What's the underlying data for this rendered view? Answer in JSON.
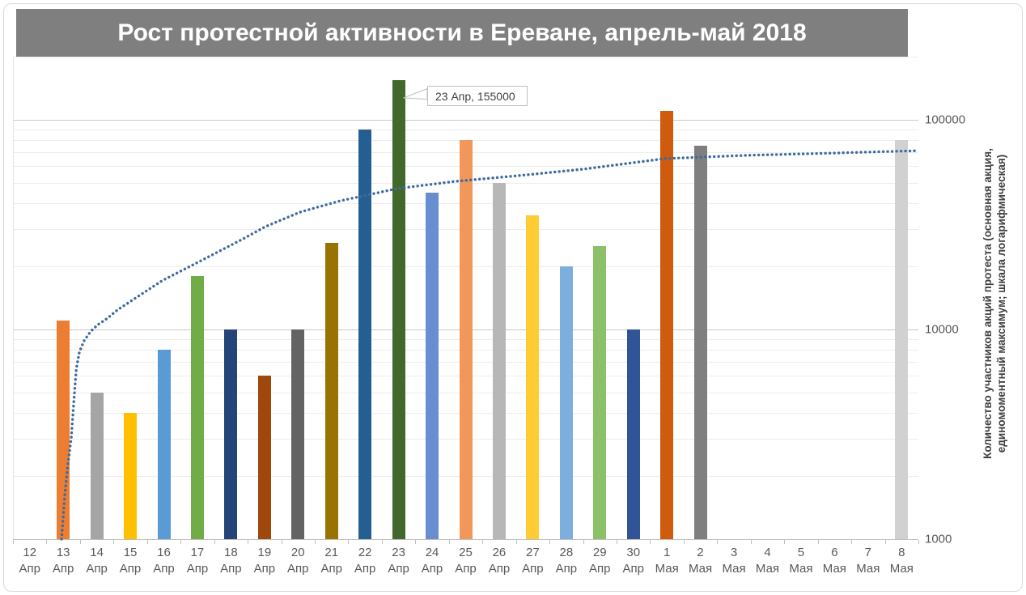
{
  "title": "Рост протестной активности в Ереване, апрель-май 2018",
  "colors": {
    "title_bg": "#7F7F7F",
    "title_text": "#FFFFFF",
    "major_grid": "#C9C9C9",
    "minor_grid": "#EDEDED",
    "axis_line": "#BFBFBF",
    "tick_label": "#595959",
    "axis_title_text": "#404040",
    "trend_line": "#3E6C9E",
    "annotation_border": "#BFBFBF"
  },
  "y_axis": {
    "scale": "logarithmic",
    "tick_labels": [
      "100000",
      "10000",
      "1000"
    ],
    "title_line1": "Количество участников акций протеста (основная акция,",
    "title_line2": "единомоментный максимум; шкала логарифмическая)"
  },
  "annotation": {
    "text": "23 Апр, 155000",
    "category": "23 Апр",
    "value": 155000
  },
  "chart_data": {
    "type": "bar",
    "title": "Рост протестной активности в Ереване, апрель-май 2018",
    "xlabel": "",
    "ylabel": "Количество участников акций протеста (основная акция, единомоментный максимум; шкала логарифмическая)",
    "ylog": true,
    "ylim": [
      1000,
      200000
    ],
    "yticks": [
      100000,
      10000,
      1000
    ],
    "grid": "log major+minor",
    "legend": "none",
    "categories": [
      {
        "day": "12",
        "month": "Апр"
      },
      {
        "day": "13",
        "month": "Апр"
      },
      {
        "day": "14",
        "month": "Апр"
      },
      {
        "day": "15",
        "month": "Апр"
      },
      {
        "day": "16",
        "month": "Апр"
      },
      {
        "day": "17",
        "month": "Апр"
      },
      {
        "day": "18",
        "month": "Апр"
      },
      {
        "day": "19",
        "month": "Апр"
      },
      {
        "day": "20",
        "month": "Апр"
      },
      {
        "day": "21",
        "month": "Апр"
      },
      {
        "day": "22",
        "month": "Апр"
      },
      {
        "day": "23",
        "month": "Апр"
      },
      {
        "day": "24",
        "month": "Апр"
      },
      {
        "day": "25",
        "month": "Апр"
      },
      {
        "day": "26",
        "month": "Апр"
      },
      {
        "day": "27",
        "month": "Апр"
      },
      {
        "day": "28",
        "month": "Апр"
      },
      {
        "day": "29",
        "month": "Апр"
      },
      {
        "day": "30",
        "month": "Апр"
      },
      {
        "day": "1",
        "month": "Мая"
      },
      {
        "day": "2",
        "month": "Мая"
      },
      {
        "day": "3",
        "month": "Мая"
      },
      {
        "day": "4",
        "month": "Мая"
      },
      {
        "day": "5",
        "month": "Мая"
      },
      {
        "day": "6",
        "month": "Мая"
      },
      {
        "day": "7",
        "month": "Мая"
      },
      {
        "day": "8",
        "month": "Мая"
      }
    ],
    "values": [
      null,
      11000,
      5000,
      4000,
      8000,
      18000,
      10000,
      6000,
      10000,
      26000,
      90000,
      155000,
      45000,
      80000,
      50000,
      35000,
      20000,
      25000,
      10000,
      110000,
      75000,
      null,
      null,
      null,
      null,
      null,
      80000
    ],
    "bar_colors": [
      null,
      "#ED7D31",
      "#A5A5A5",
      "#FFC000",
      "#5B9BD5",
      "#70AD47",
      "#264478",
      "#9E480E",
      "#636363",
      "#997300",
      "#255E91",
      "#43682B",
      "#698ED0",
      "#F1975A",
      "#B7B7B7",
      "#FFCD33",
      "#7CAFDD",
      "#8CC168",
      "#2F5597",
      "#CE5B0E",
      "#7F7F7F",
      null,
      null,
      null,
      null,
      null,
      "#D1D1D1"
    ],
    "data_label": {
      "category_index": 11,
      "text": "23 Апр, 155000"
    },
    "trend": {
      "kind": "logarithmic trendline, dotted",
      "points": [
        [
          0.95,
          1000
        ],
        [
          1.05,
          1650
        ],
        [
          1.15,
          2350
        ],
        [
          1.24,
          3050
        ],
        [
          1.31,
          4400
        ],
        [
          1.39,
          6500
        ],
        [
          1.48,
          7800
        ],
        [
          1.63,
          8900
        ],
        [
          1.82,
          9800
        ],
        [
          2.02,
          10500
        ],
        [
          2.31,
          11300
        ],
        [
          2.62,
          12400
        ],
        [
          3.06,
          13800
        ],
        [
          3.95,
          17100
        ],
        [
          5.16,
          21500
        ],
        [
          6.37,
          27100
        ],
        [
          7.02,
          30900
        ],
        [
          8.06,
          36300
        ],
        [
          9.27,
          41100
        ],
        [
          10.96,
          47000
        ],
        [
          12.66,
          50800
        ],
        [
          14.59,
          54200
        ],
        [
          16.52,
          58200
        ],
        [
          18.94,
          65300
        ],
        [
          21.36,
          67700
        ],
        [
          23.78,
          69300
        ],
        [
          26.44,
          71200
        ]
      ]
    }
  }
}
